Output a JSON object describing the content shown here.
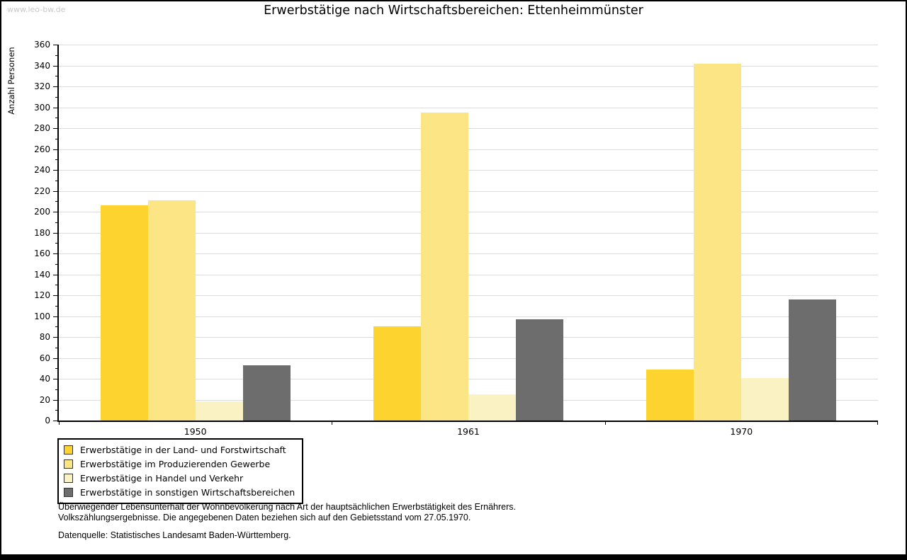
{
  "watermark": "www.leo-bw.de",
  "title": "Erwerbstätige nach Wirtschaftsbereichen: Ettenheimmünster",
  "chart_data": {
    "type": "bar",
    "title": "Erwerbstätige nach Wirtschaftsbereichen: Ettenheimmünster",
    "ylabel": "Anzahl Personen",
    "xlabel": "",
    "categories": [
      "1950",
      "1961",
      "1970"
    ],
    "series": [
      {
        "name": "Erwerbstätige in der Land- und Forstwirtschaft",
        "color": "#FCD32F",
        "values": [
          206,
          90,
          49
        ]
      },
      {
        "name": "Erwerbstätige im Produzierenden Gewerbe",
        "color": "#FBE584",
        "values": [
          211,
          295,
          342
        ]
      },
      {
        "name": "Erwerbstätige in Handel und Verkehr",
        "color": "#FBF2C3",
        "values": [
          18,
          25,
          41
        ]
      },
      {
        "name": "Erwerbstätige in sonstigen Wirtschaftsbereichen",
        "color": "#6D6D6D",
        "values": [
          53,
          97,
          116
        ]
      }
    ],
    "ylim": [
      0,
      360
    ],
    "ytick_step": 20,
    "ytick_minor_step": 10,
    "grid": true,
    "legend_position": "bottom-left",
    "colors": {
      "gridline": "#dcdcdc",
      "axis": "#000000",
      "background": "#ffffff"
    }
  },
  "footer": {
    "line1": "Überwiegender Lebensunterhalt der Wohnbevölkerung nach Art der hauptsächlichen Erwerbstätigkeit des Ernährers.",
    "line2": "Volkszählungsergebnisse. Die angegebenen Daten beziehen sich auf den Gebietsstand vom 27.05.1970.",
    "source": "Datenquelle: Statistisches Landesamt Baden-Württemberg."
  }
}
